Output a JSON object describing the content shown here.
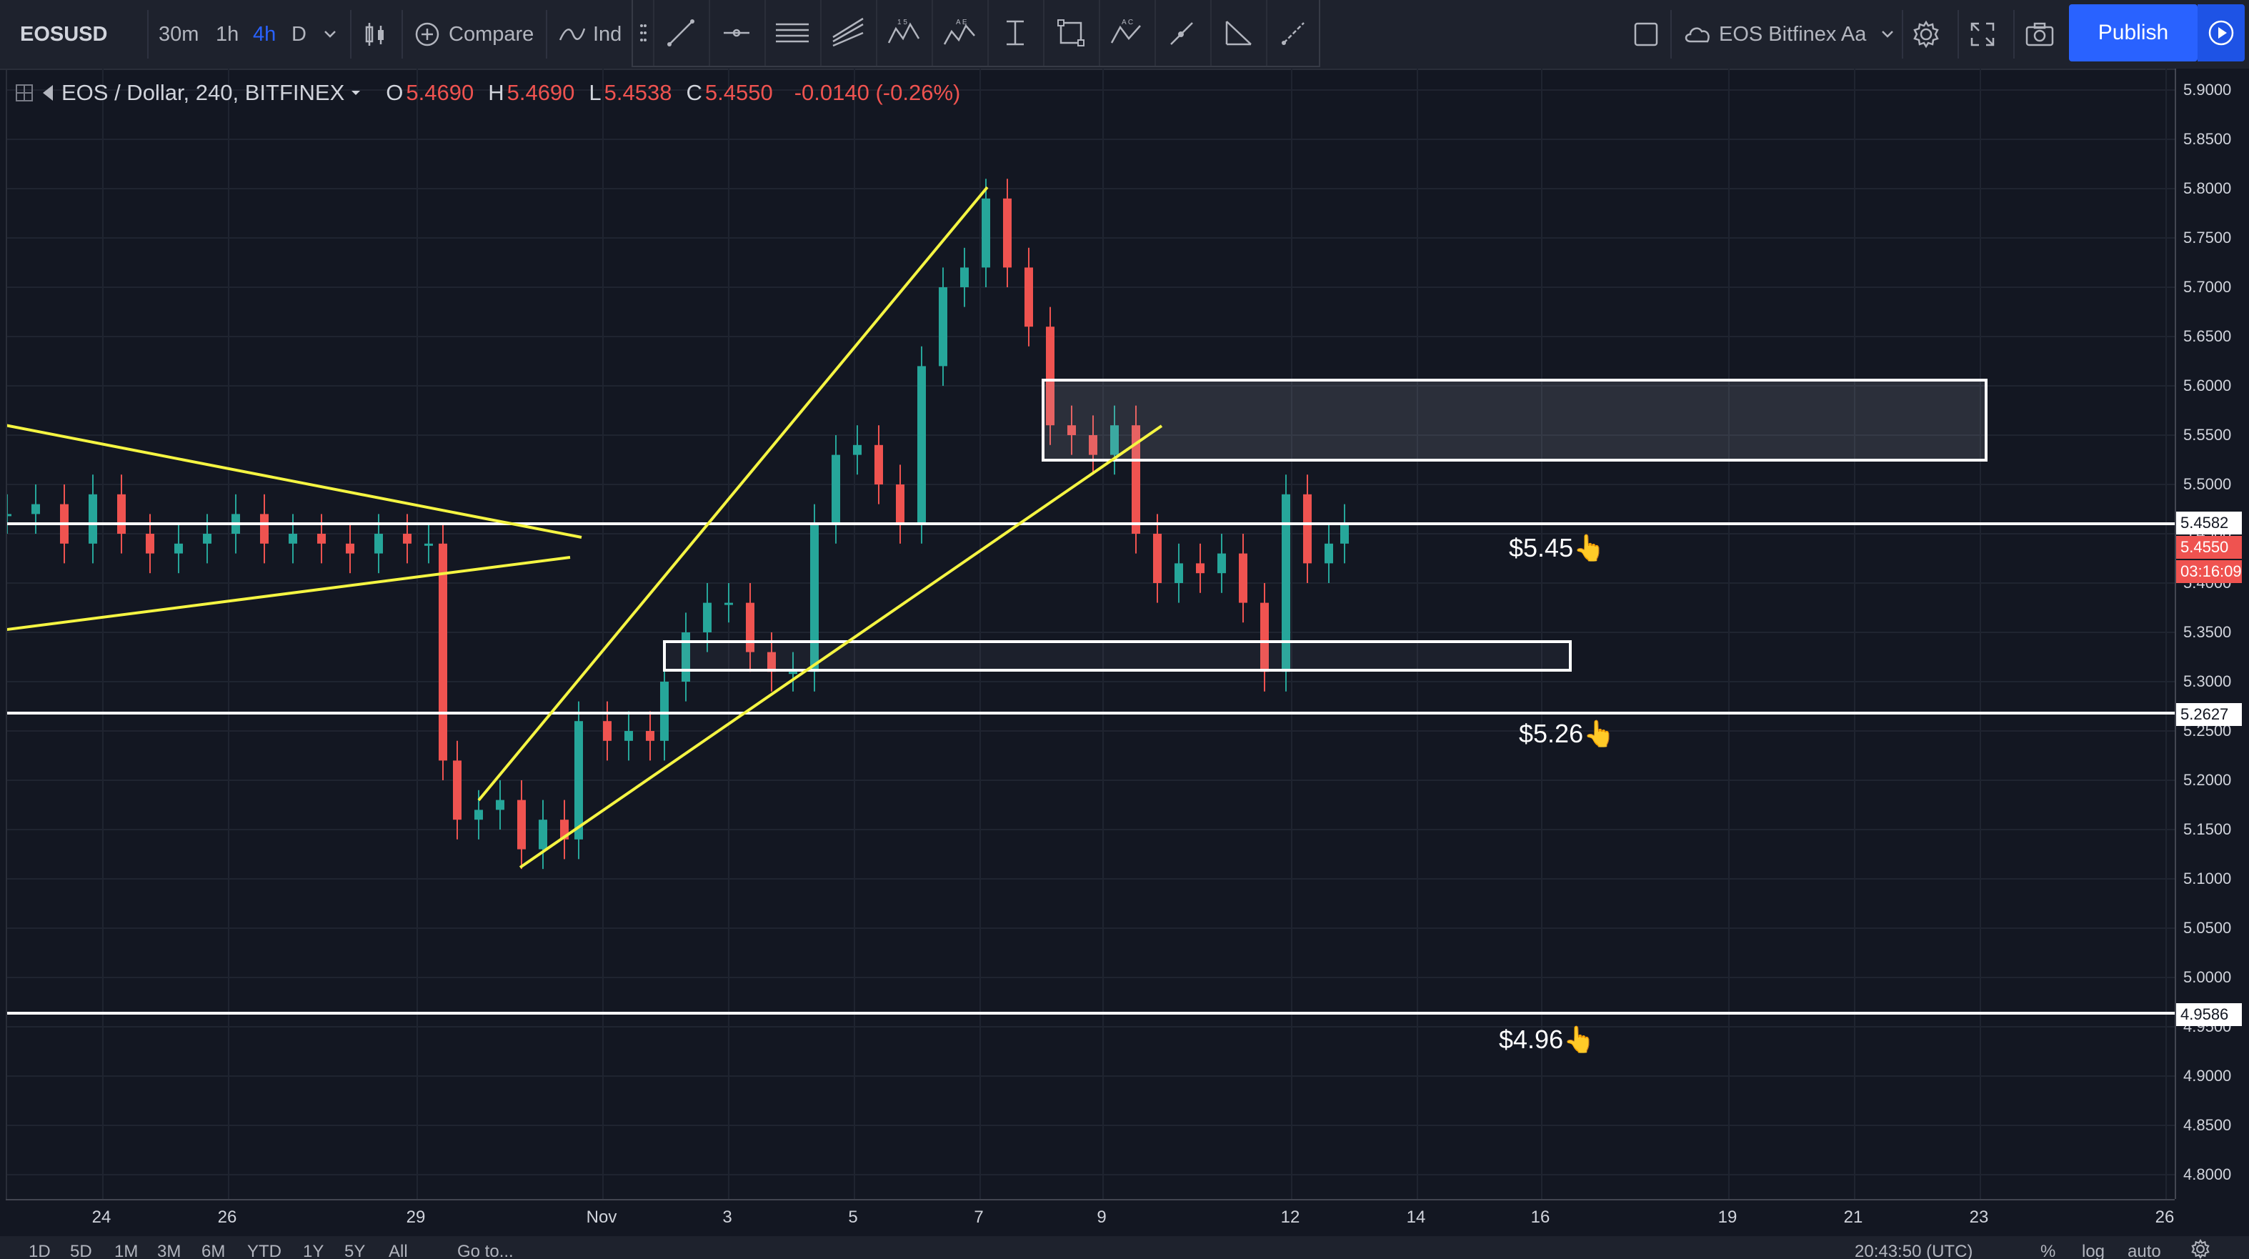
{
  "toolbar": {
    "symbol": "EOSUSD",
    "timeframes": [
      "30m",
      "1h",
      "4h",
      "D"
    ],
    "active_timeframe": "4h",
    "compare_label": "Compare",
    "indicators_label": "Ind",
    "layout_name": "EOS Bitfinex Aa",
    "publish_label": "Publish"
  },
  "legend": {
    "title": "EOS / Dollar, 240, BITFINEX",
    "open_key": "O",
    "open": "5.4690",
    "high_key": "H",
    "high": "5.4690",
    "low_key": "L",
    "low": "5.4538",
    "close_key": "C",
    "close": "5.4550",
    "change": "-0.0140 (-0.26%)"
  },
  "price_axis": {
    "labels": [
      "5.9000",
      "5.8500",
      "5.8000",
      "5.7500",
      "5.7000",
      "5.6500",
      "5.6000",
      "5.5500",
      "5.5000",
      "5.4500",
      "5.4000",
      "5.3500",
      "5.3000",
      "5.2500",
      "5.2000",
      "5.1500",
      "5.1000",
      "5.0500",
      "5.0000",
      "4.9500",
      "4.9000",
      "4.8500",
      "4.8000"
    ],
    "tags": [
      {
        "text": "5.4582",
        "style": "white"
      },
      {
        "text": "5.4550",
        "style": "red"
      },
      {
        "text": "03:16:09",
        "style": "red"
      },
      {
        "text": "5.2627",
        "style": "white"
      },
      {
        "text": "4.9586",
        "style": "white"
      }
    ]
  },
  "time_axis": {
    "labels": [
      "24",
      "26",
      "29",
      "Nov",
      "3",
      "5",
      "7",
      "9",
      "12",
      "14",
      "16",
      "19",
      "21",
      "23",
      "26"
    ]
  },
  "annotations": [
    "$5.45👆",
    "$5.26👆",
    "$4.96👆"
  ],
  "bottom_bar": {
    "ranges": [
      "1D",
      "5D",
      "1M",
      "3M",
      "6M",
      "YTD",
      "1Y",
      "5Y",
      "All"
    ],
    "goto_label": "Go to...",
    "clock": "20:43:50 (UTC)",
    "options": [
      "%",
      "log",
      "auto"
    ]
  },
  "colors": {
    "background": "#131722",
    "up": "#26a69a",
    "down": "#ef5350",
    "trendline": "#f5f542",
    "levels": "#ffffff",
    "accent": "#2962ff"
  },
  "icons": [
    "bar-style-icon",
    "compare-plus-icon",
    "indicators-icon",
    "trendline-tool-icon",
    "horizontal-ray-tool-icon",
    "parallel-channel-tool-icon",
    "pitchfork-tool-icon",
    "xabcd-pattern-tool-icon",
    "elliott-wave-tool-icon",
    "price-range-tool-icon",
    "rectangle-tool-icon",
    "abcd-pattern-tool-icon",
    "arrow-tool-icon",
    "gann-fan-tool-icon",
    "brush-tool-icon",
    "square-icon",
    "cloud-icon",
    "gear-icon",
    "fullscreen-icon",
    "camera-icon",
    "play-icon"
  ]
}
